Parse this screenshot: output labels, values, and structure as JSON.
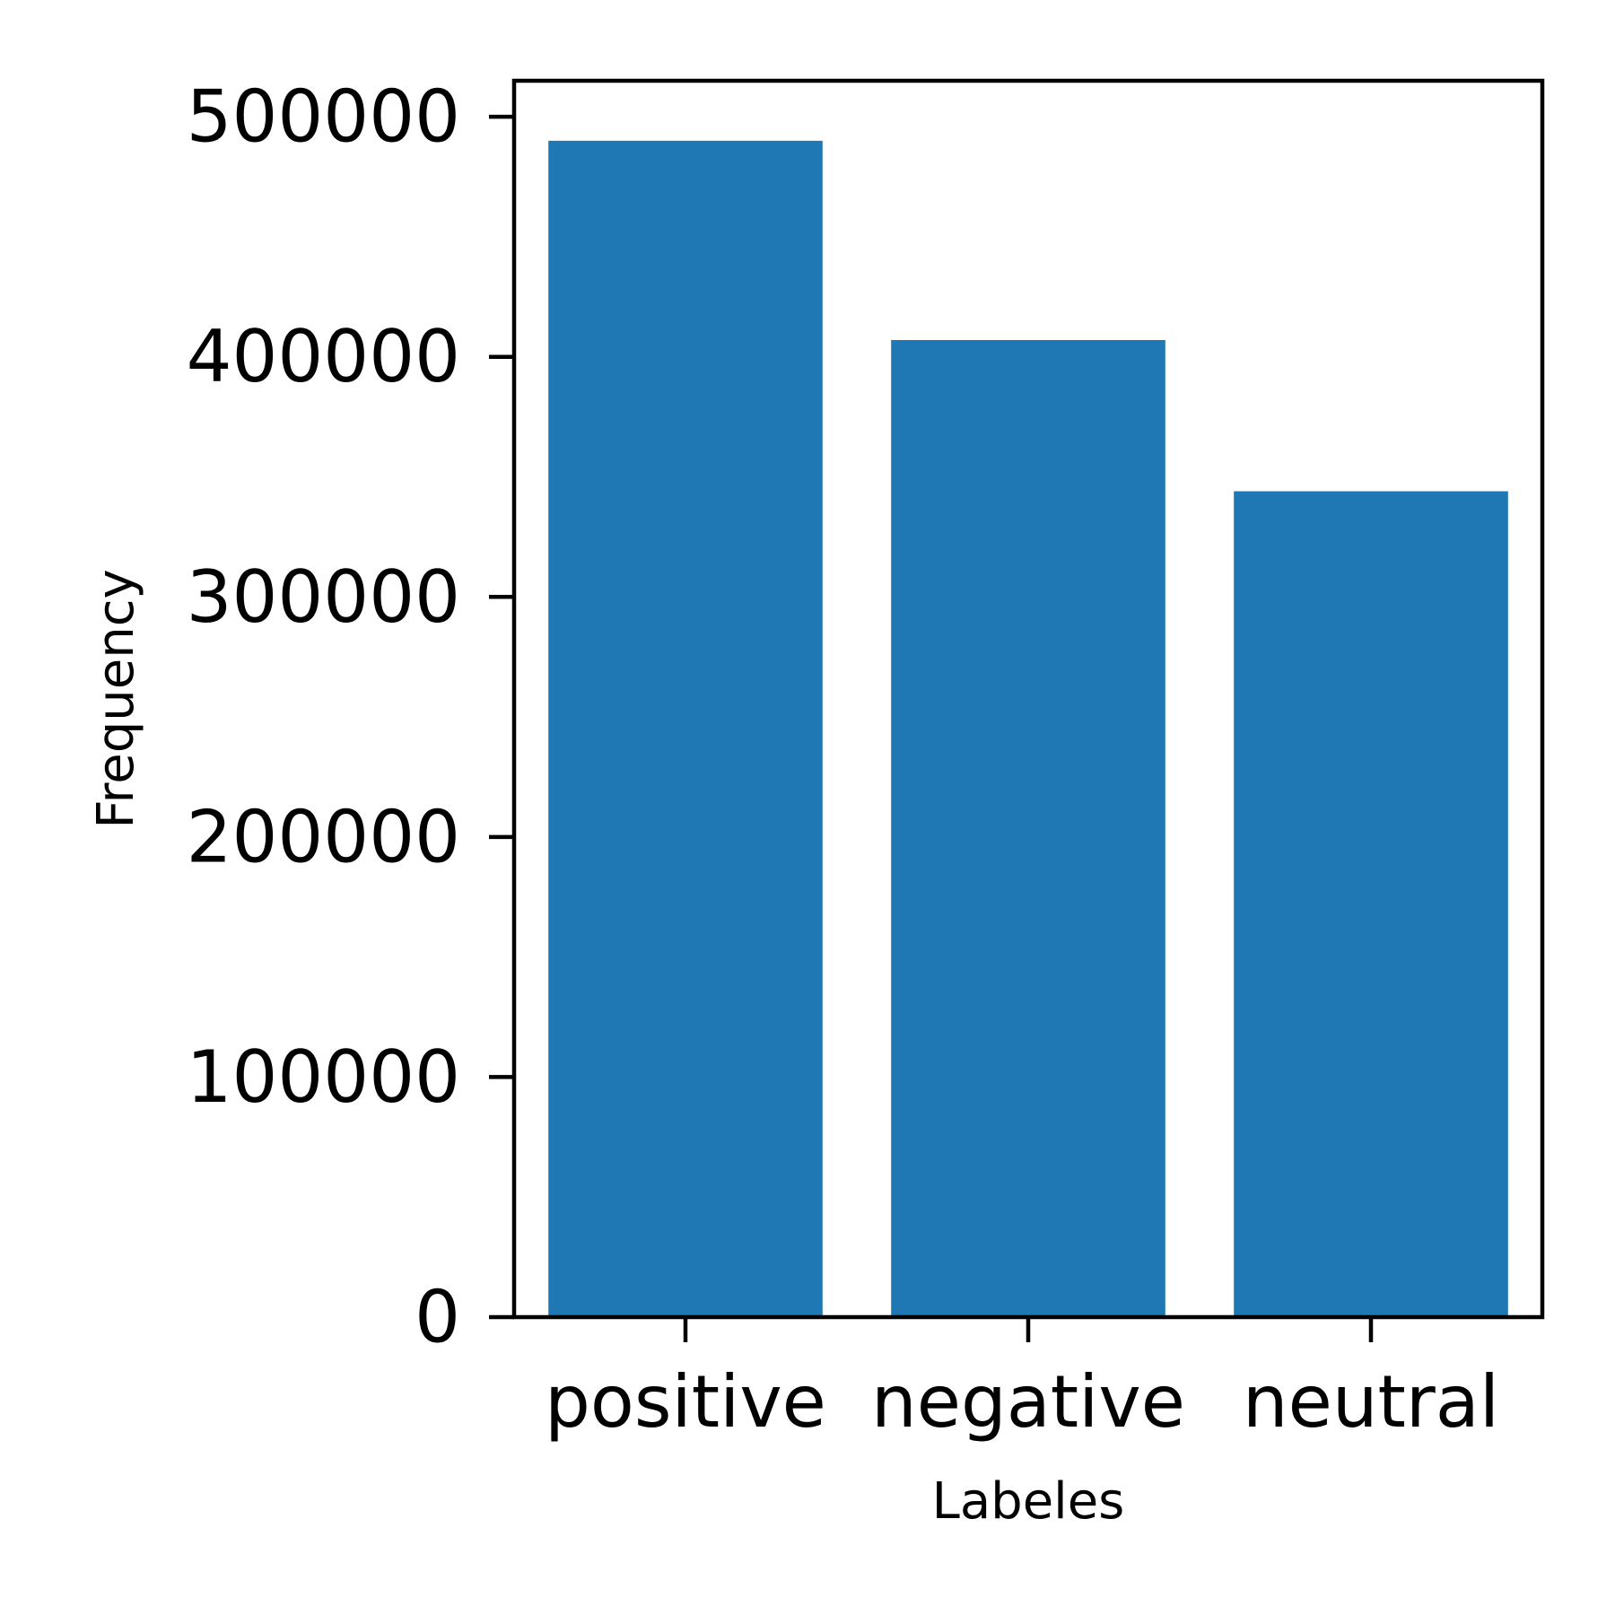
{
  "chart_data": {
    "type": "bar",
    "title": "",
    "xlabel": "Labeles",
    "ylabel": "Frequency",
    "categories": [
      "positive",
      "negative",
      "neutral"
    ],
    "values": [
      490000,
      407000,
      344000
    ],
    "ylim": [
      0,
      515000
    ],
    "yticks": [
      0,
      100000,
      200000,
      300000,
      400000,
      500000
    ],
    "ytick_labels": [
      "0",
      "100000",
      "200000",
      "300000",
      "400000",
      "500000"
    ],
    "bar_color": "#1f77b4",
    "grid": false,
    "legend": "none"
  }
}
